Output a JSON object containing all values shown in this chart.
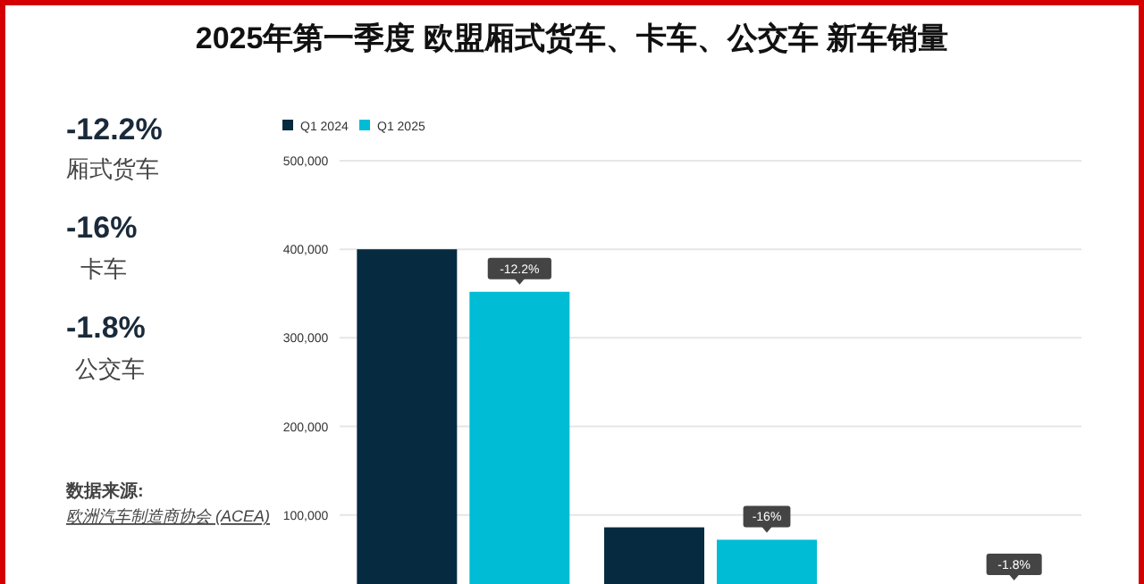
{
  "chart_data": {
    "type": "bar",
    "title": "2025年第一季度  欧盟厢式货车、卡车、公交车 新车销量",
    "categories": [
      null,
      null,
      null
    ],
    "series": [
      {
        "name": "Q1 2024",
        "color": "#062a40",
        "values": [
          400000,
          86000,
          null
        ]
      },
      {
        "name": "Q1 2025",
        "color": "#00bcd4",
        "values": [
          352000,
          72000,
          null
        ]
      }
    ],
    "ylim": [
      20000,
      500000
    ],
    "yticks": [
      {
        "value": 100000,
        "label": "100,000"
      },
      {
        "value": 200000,
        "label": "200,000"
      },
      {
        "value": 300000,
        "label": "300,000"
      },
      {
        "value": 400000,
        "label": "400,000"
      },
      {
        "value": 500000,
        "label": "500,000"
      }
    ],
    "grid": "y",
    "legend": "top left",
    "annotations": [
      "-12.2%",
      "厢式货车",
      "-16%",
      "卡车",
      "-1.8%",
      "公交车",
      "数据来源:",
      "欧洲汽车制造商协会 (ACEA)",
      "-12.2%",
      "-16%",
      "-1.8%"
    ]
  }
}
